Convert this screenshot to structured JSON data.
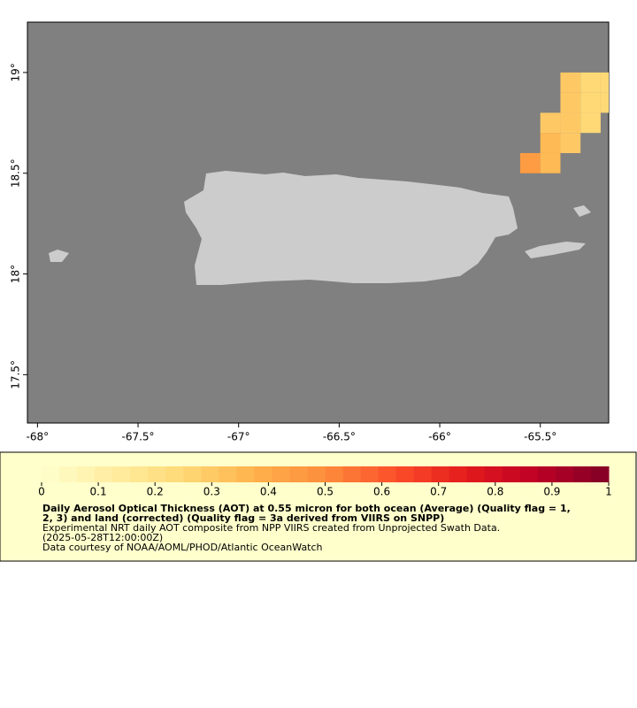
{
  "chart_data": {
    "type": "heatmap",
    "xlim": [
      -68.05,
      -65.16
    ],
    "ylim": [
      17.26,
      19.25
    ],
    "xticks": [
      {
        "value": -68,
        "label": "-68°"
      },
      {
        "value": -67.5,
        "label": "-67.5°"
      },
      {
        "value": -67,
        "label": "-67°"
      },
      {
        "value": -66.5,
        "label": "-66.5°"
      },
      {
        "value": -66,
        "label": "-66°"
      },
      {
        "value": -65.5,
        "label": "-65.5°"
      }
    ],
    "yticks": [
      {
        "value": 17.5,
        "label": "17.5°"
      },
      {
        "value": 18,
        "label": "18°"
      },
      {
        "value": 18.5,
        "label": "18.5°"
      },
      {
        "value": 19,
        "label": "19°"
      }
    ],
    "cell_size": 0.1,
    "cells": {
      "lon": [
        -65.4,
        -65.3,
        -65.2,
        -65.4,
        -65.3,
        -65.2,
        -65.5,
        -65.4,
        -65.3,
        -65.5,
        -65.4,
        -65.6,
        -65.5
      ],
      "lat": [
        18.9,
        18.9,
        18.9,
        18.8,
        18.8,
        18.8,
        18.7,
        18.7,
        18.7,
        18.6,
        18.6,
        18.5,
        18.5
      ],
      "values": [
        0.3,
        0.25,
        0.25,
        0.3,
        0.25,
        0.25,
        0.3,
        0.3,
        0.25,
        0.35,
        0.3,
        0.45,
        0.35
      ]
    },
    "colormap": [
      "#ffffcc",
      "#ffeda0",
      "#fed976",
      "#feb24c",
      "#fd8d3c",
      "#fc4e2a",
      "#e31a1c",
      "#bd0026",
      "#800026"
    ],
    "colorbar": {
      "lim": [
        0,
        1
      ],
      "ticks": [
        0,
        0.1,
        0.2,
        0.3,
        0.4,
        0.5,
        0.6,
        0.7,
        0.8,
        0.9,
        1
      ]
    },
    "legend": {
      "title": [
        "Daily Aerosol Optical Thickness (AOT) at 0.55 micron for both ocean (Average) (Quality flag = 1,",
        "2, 3) and land (corrected) (Quality flag = 3a derived from VIIRS on SNPP)"
      ],
      "notes": [
        "Experimental NRT daily AOT composite from NPP VIIRS created from Unprojected Swath Data.",
        "(2025-05-28T12:00:00Z)",
        "Data courtesy of NOAA/AOML/PHOD/Atlantic OceanWatch"
      ]
    }
  }
}
